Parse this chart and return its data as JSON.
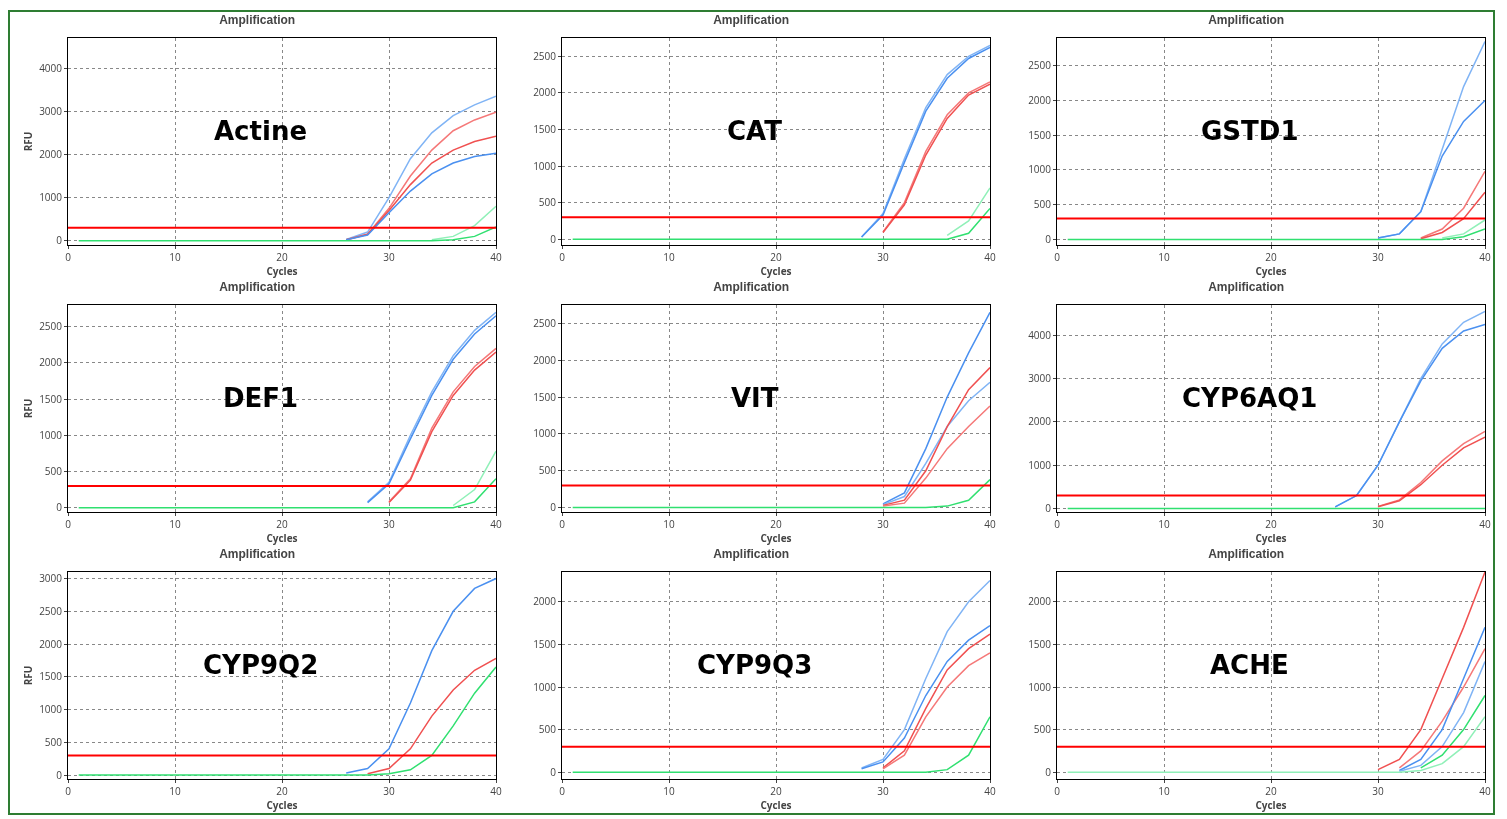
{
  "chart_data": [
    {
      "type": "line",
      "title": "Amplification",
      "xlabel": "Cycles",
      "ylabel": "RFU",
      "annotations": [
        "Actine"
      ],
      "x": [
        1,
        10,
        20,
        24,
        26,
        28,
        30,
        32,
        34,
        36,
        38,
        40
      ],
      "xlim": [
        0,
        40
      ],
      "xticks": [
        0,
        10,
        20,
        30,
        40
      ],
      "ylim": [
        -100,
        4700
      ],
      "yticks": [
        0,
        1000,
        2000,
        3000,
        4000
      ],
      "grid": true,
      "ref_lines": [
        {
          "axis": "y",
          "value": 300,
          "color": "#ff0000"
        }
      ],
      "series": [
        {
          "color": "#80b4f5",
          "values": [
            null,
            null,
            null,
            null,
            30,
            200,
            1000,
            1900,
            2500,
            2900,
            3150,
            3350
          ]
        },
        {
          "color": "#f57878",
          "values": [
            null,
            null,
            null,
            null,
            20,
            150,
            750,
            1500,
            2100,
            2550,
            2800,
            2980
          ]
        },
        {
          "color": "#f05050",
          "values": [
            null,
            null,
            null,
            null,
            20,
            150,
            700,
            1300,
            1800,
            2100,
            2300,
            2420
          ]
        },
        {
          "color": "#4a90f0",
          "values": [
            null,
            null,
            null,
            null,
            20,
            130,
            650,
            1150,
            1550,
            1800,
            1950,
            2030
          ]
        },
        {
          "color": "#90f0b8",
          "values": [
            null,
            null,
            null,
            null,
            null,
            null,
            null,
            null,
            20,
            100,
            350,
            800
          ]
        },
        {
          "color": "#30e070",
          "values": [
            0,
            0,
            0,
            0,
            0,
            0,
            0,
            0,
            0,
            20,
            100,
            320
          ]
        }
      ]
    },
    {
      "type": "line",
      "title": "Amplification",
      "xlabel": "Cycles",
      "annotations": [
        "CAT"
      ],
      "x": [
        1,
        10,
        20,
        24,
        26,
        28,
        30,
        32,
        34,
        36,
        38,
        40
      ],
      "xlim": [
        0,
        40
      ],
      "xticks": [
        0,
        10,
        20,
        30,
        40
      ],
      "ylim": [
        -80,
        2750
      ],
      "yticks": [
        0,
        500,
        1000,
        1500,
        2000,
        2500
      ],
      "grid": true,
      "ref_lines": [
        {
          "axis": "y",
          "value": 300,
          "color": "#ff0000"
        }
      ],
      "series": [
        {
          "color": "#80b4f5",
          "values": [
            null,
            null,
            null,
            null,
            null,
            30,
            350,
            1100,
            1800,
            2250,
            2500,
            2650
          ]
        },
        {
          "color": "#4a90f0",
          "values": [
            null,
            null,
            null,
            null,
            null,
            30,
            330,
            1050,
            1750,
            2200,
            2470,
            2620
          ]
        },
        {
          "color": "#f57878",
          "values": [
            null,
            null,
            null,
            null,
            null,
            null,
            100,
            500,
            1200,
            1700,
            2000,
            2150
          ]
        },
        {
          "color": "#f05050",
          "values": [
            null,
            null,
            null,
            null,
            null,
            null,
            90,
            470,
            1150,
            1650,
            1970,
            2120
          ]
        },
        {
          "color": "#90f0b8",
          "values": [
            null,
            null,
            null,
            null,
            null,
            null,
            null,
            null,
            null,
            50,
            250,
            700
          ]
        },
        {
          "color": "#30e070",
          "values": [
            0,
            0,
            0,
            0,
            0,
            0,
            0,
            0,
            0,
            0,
            80,
            420
          ]
        }
      ]
    },
    {
      "type": "line",
      "title": "Amplification",
      "xlabel": "Cycles",
      "annotations": [
        "GSTD1"
      ],
      "x": [
        1,
        10,
        20,
        24,
        26,
        28,
        30,
        32,
        34,
        36,
        38,
        40
      ],
      "xlim": [
        0,
        40
      ],
      "xticks": [
        0,
        10,
        20,
        30,
        40
      ],
      "ylim": [
        -80,
        2900
      ],
      "yticks": [
        0,
        500,
        1000,
        1500,
        2000,
        2500
      ],
      "grid": true,
      "ref_lines": [
        {
          "axis": "y",
          "value": 300,
          "color": "#ff0000"
        }
      ],
      "series": [
        {
          "color": "#80b4f5",
          "values": [
            null,
            null,
            null,
            null,
            null,
            null,
            20,
            80,
            400,
            1300,
            2200,
            2850
          ]
        },
        {
          "color": "#4a90f0",
          "values": [
            null,
            null,
            null,
            null,
            null,
            null,
            20,
            80,
            400,
            1200,
            1700,
            2000
          ]
        },
        {
          "color": "#f57878",
          "values": [
            null,
            null,
            null,
            null,
            null,
            null,
            null,
            null,
            20,
            150,
            450,
            980
          ]
        },
        {
          "color": "#f05050",
          "values": [
            null,
            null,
            null,
            null,
            null,
            null,
            null,
            null,
            10,
            100,
            300,
            680
          ]
        },
        {
          "color": "#90f0b8",
          "values": [
            null,
            null,
            null,
            null,
            null,
            null,
            null,
            null,
            null,
            20,
            80,
            280
          ]
        },
        {
          "color": "#30e070",
          "values": [
            0,
            0,
            0,
            0,
            0,
            0,
            0,
            0,
            0,
            0,
            40,
            150
          ]
        }
      ]
    },
    {
      "type": "line",
      "title": "Amplification",
      "xlabel": "Cycles",
      "ylabel": "RFU",
      "annotations": [
        "DEF1"
      ],
      "x": [
        1,
        10,
        20,
        24,
        26,
        28,
        30,
        32,
        34,
        36,
        38,
        40
      ],
      "xlim": [
        0,
        40
      ],
      "xticks": [
        0,
        10,
        20,
        30,
        40
      ],
      "ylim": [
        -60,
        2800
      ],
      "yticks": [
        0,
        500,
        1000,
        1500,
        2000,
        2500
      ],
      "grid": true,
      "ref_lines": [
        {
          "axis": "y",
          "value": 300,
          "color": "#ff0000"
        }
      ],
      "series": [
        {
          "color": "#80b4f5",
          "values": [
            null,
            null,
            null,
            null,
            null,
            80,
            350,
            1000,
            1600,
            2100,
            2450,
            2700
          ]
        },
        {
          "color": "#4a90f0",
          "values": [
            null,
            null,
            null,
            null,
            null,
            70,
            330,
            950,
            1550,
            2050,
            2400,
            2650
          ]
        },
        {
          "color": "#f57878",
          "values": [
            null,
            null,
            null,
            null,
            null,
            null,
            80,
            400,
            1100,
            1600,
            1950,
            2200
          ]
        },
        {
          "color": "#f05050",
          "values": [
            null,
            null,
            null,
            null,
            null,
            null,
            70,
            380,
            1050,
            1550,
            1900,
            2150
          ]
        },
        {
          "color": "#90f0b8",
          "values": [
            null,
            null,
            null,
            null,
            null,
            null,
            null,
            null,
            null,
            30,
            250,
            780
          ]
        },
        {
          "color": "#30e070",
          "values": [
            0,
            0,
            0,
            0,
            0,
            0,
            0,
            0,
            0,
            0,
            80,
            400
          ]
        }
      ]
    },
    {
      "type": "line",
      "title": "Amplification",
      "xlabel": "Cycles",
      "annotations": [
        "VIT"
      ],
      "x": [
        1,
        10,
        20,
        24,
        26,
        28,
        30,
        32,
        34,
        36,
        38,
        40
      ],
      "xlim": [
        0,
        40
      ],
      "xticks": [
        0,
        10,
        20,
        30,
        40
      ],
      "ylim": [
        -60,
        2750
      ],
      "yticks": [
        0,
        500,
        1000,
        1500,
        2000,
        2500
      ],
      "grid": true,
      "ref_lines": [
        {
          "axis": "y",
          "value": 300,
          "color": "#ff0000"
        }
      ],
      "series": [
        {
          "color": "#4a90f0",
          "values": [
            null,
            null,
            null,
            null,
            null,
            null,
            50,
            200,
            800,
            1500,
            2100,
            2650
          ]
        },
        {
          "color": "#80b4f5",
          "values": [
            null,
            null,
            null,
            null,
            null,
            null,
            40,
            150,
            600,
            1100,
            1450,
            1700
          ]
        },
        {
          "color": "#f05050",
          "values": [
            null,
            null,
            null,
            null,
            null,
            null,
            30,
            100,
            500,
            1100,
            1600,
            1900
          ]
        },
        {
          "color": "#f57878",
          "values": [
            null,
            null,
            null,
            null,
            null,
            null,
            20,
            60,
            400,
            800,
            1100,
            1380
          ]
        },
        {
          "color": "#30e070",
          "values": [
            0,
            0,
            0,
            0,
            0,
            0,
            0,
            0,
            0,
            20,
            100,
            380
          ]
        }
      ]
    },
    {
      "type": "line",
      "title": "Amplification",
      "xlabel": "Cycles",
      "annotations": [
        "CYP6AQ1"
      ],
      "x": [
        1,
        10,
        20,
        24,
        26,
        28,
        30,
        32,
        34,
        36,
        38,
        40
      ],
      "xlim": [
        0,
        40
      ],
      "xticks": [
        0,
        10,
        20,
        30,
        40
      ],
      "ylim": [
        -80,
        4700
      ],
      "yticks": [
        0,
        1000,
        2000,
        3000,
        4000
      ],
      "grid": true,
      "ref_lines": [
        {
          "axis": "y",
          "value": 300,
          "color": "#ff0000"
        }
      ],
      "series": [
        {
          "color": "#80b4f5",
          "values": [
            null,
            null,
            null,
            null,
            40,
            300,
            1000,
            2000,
            3000,
            3800,
            4300,
            4550
          ]
        },
        {
          "color": "#4a90f0",
          "values": [
            null,
            null,
            null,
            null,
            40,
            300,
            1000,
            2000,
            2950,
            3700,
            4100,
            4250
          ]
        },
        {
          "color": "#f57878",
          "values": [
            null,
            null,
            null,
            null,
            null,
            null,
            50,
            200,
            600,
            1100,
            1500,
            1780
          ]
        },
        {
          "color": "#f05050",
          "values": [
            null,
            null,
            null,
            null,
            null,
            null,
            40,
            180,
            550,
            1000,
            1400,
            1650
          ]
        },
        {
          "color": "#30e070",
          "values": [
            0,
            0,
            0,
            0,
            0,
            0,
            0,
            0,
            0,
            0,
            0,
            0
          ]
        }
      ]
    },
    {
      "type": "line",
      "title": "Amplification",
      "xlabel": "Cycles",
      "ylabel": "RFU",
      "annotations": [
        "CYP9Q2"
      ],
      "x": [
        1,
        10,
        20,
        24,
        26,
        28,
        30,
        32,
        34,
        36,
        38,
        40
      ],
      "xlim": [
        0,
        40
      ],
      "xticks": [
        0,
        10,
        20,
        30,
        40
      ],
      "ylim": [
        -60,
        3100
      ],
      "yticks": [
        0,
        500,
        1000,
        1500,
        2000,
        2500,
        3000
      ],
      "grid": true,
      "ref_lines": [
        {
          "axis": "y",
          "value": 300,
          "color": "#ff0000"
        }
      ],
      "series": [
        {
          "color": "#4a90f0",
          "values": [
            null,
            null,
            null,
            null,
            30,
            100,
            400,
            1100,
            1900,
            2500,
            2850,
            3000
          ]
        },
        {
          "color": "#f05050",
          "values": [
            null,
            null,
            null,
            null,
            null,
            20,
            100,
            400,
            900,
            1300,
            1600,
            1780
          ]
        },
        {
          "color": "#30e070",
          "values": [
            0,
            0,
            0,
            0,
            0,
            0,
            20,
            80,
            300,
            750,
            1250,
            1650
          ]
        }
      ]
    },
    {
      "type": "line",
      "title": "Amplification",
      "xlabel": "Cycles",
      "annotations": [
        "CYP9Q3"
      ],
      "x": [
        1,
        10,
        20,
        24,
        26,
        28,
        30,
        32,
        34,
        36,
        38,
        40
      ],
      "xlim": [
        0,
        40
      ],
      "xticks": [
        0,
        10,
        20,
        30,
        40
      ],
      "ylim": [
        -80,
        2350
      ],
      "yticks": [
        0,
        500,
        1000,
        1500,
        2000
      ],
      "grid": true,
      "ref_lines": [
        {
          "axis": "y",
          "value": 300,
          "color": "#ff0000"
        }
      ],
      "series": [
        {
          "color": "#80b4f5",
          "values": [
            null,
            null,
            null,
            null,
            null,
            50,
            150,
            500,
            1100,
            1650,
            2000,
            2250
          ]
        },
        {
          "color": "#4a90f0",
          "values": [
            null,
            null,
            null,
            null,
            null,
            40,
            120,
            400,
            900,
            1300,
            1550,
            1720
          ]
        },
        {
          "color": "#f05050",
          "values": [
            null,
            null,
            null,
            null,
            null,
            null,
            50,
            250,
            750,
            1200,
            1450,
            1620
          ]
        },
        {
          "color": "#f57878",
          "values": [
            null,
            null,
            null,
            null,
            null,
            null,
            40,
            200,
            650,
            1000,
            1250,
            1400
          ]
        },
        {
          "color": "#30e070",
          "values": [
            0,
            0,
            0,
            0,
            0,
            0,
            0,
            0,
            0,
            30,
            200,
            650
          ]
        }
      ]
    },
    {
      "type": "line",
      "title": "Amplification",
      "xlabel": "Cycles",
      "annotations": [
        "ACHE"
      ],
      "x": [
        1,
        10,
        20,
        24,
        26,
        28,
        30,
        32,
        34,
        36,
        38,
        40
      ],
      "xlim": [
        0,
        40
      ],
      "xticks": [
        0,
        10,
        20,
        30,
        40
      ],
      "ylim": [
        -80,
        2350
      ],
      "yticks": [
        0,
        500,
        1000,
        1500,
        2000
      ],
      "grid": true,
      "ref_lines": [
        {
          "axis": "y",
          "value": 300,
          "color": "#ff0000"
        }
      ],
      "series": [
        {
          "color": "#f05050",
          "values": [
            null,
            null,
            null,
            null,
            null,
            null,
            30,
            150,
            500,
            1100,
            1700,
            2350
          ]
        },
        {
          "color": "#f57878",
          "values": [
            null,
            null,
            null,
            null,
            null,
            null,
            null,
            50,
            250,
            600,
            1000,
            1450
          ]
        },
        {
          "color": "#4a90f0",
          "values": [
            null,
            null,
            null,
            null,
            null,
            null,
            null,
            20,
            150,
            500,
            1100,
            1700
          ]
        },
        {
          "color": "#80b4f5",
          "values": [
            null,
            null,
            null,
            null,
            null,
            null,
            null,
            10,
            80,
            300,
            700,
            1300
          ]
        },
        {
          "color": "#30e070",
          "values": [
            null,
            null,
            null,
            null,
            null,
            null,
            null,
            null,
            50,
            200,
            500,
            900
          ]
        },
        {
          "color": "#90f0b8",
          "values": [
            0,
            0,
            0,
            0,
            0,
            0,
            0,
            0,
            20,
            100,
            300,
            650
          ]
        }
      ]
    }
  ]
}
